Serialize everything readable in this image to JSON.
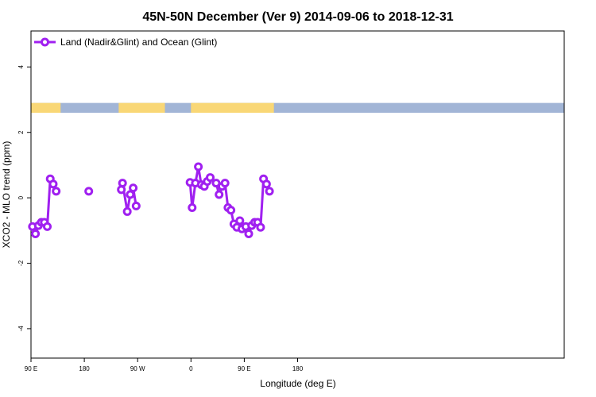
{
  "chart_data": {
    "type": "line",
    "title": "45N-50N December (Ver 9)   2014-09-06 to 2018-12-31",
    "xlabel": "Longitude (deg E)",
    "ylabel": "XCO2 - MLO trend (ppm)",
    "xlim": [
      90,
      450
    ],
    "ylim": [
      -4.9,
      5.1
    ],
    "x_ticks": [
      {
        "value": 90,
        "label": "90 E"
      },
      {
        "value": 180,
        "label": "180"
      },
      {
        "value": 270,
        "label": "90 W"
      },
      {
        "value": 360,
        "label": "0"
      },
      {
        "value": 450,
        "label": "90 E"
      },
      {
        "value": 540,
        "label": "180"
      }
    ],
    "y_ticks": [
      {
        "value": 4,
        "label": "4"
      },
      {
        "value": 2,
        "label": "2"
      },
      {
        "value": 0,
        "label": "0"
      },
      {
        "value": -2,
        "label": "-2"
      },
      {
        "value": -4,
        "label": "-4"
      }
    ],
    "legend": {
      "position": "top-left",
      "entries": [
        "Land (Nadir&Glint) and Ocean (Glint)"
      ]
    },
    "grid": false,
    "colors": {
      "series": "#a020f0",
      "land": "#f9d776",
      "ocean": "#a2b5d6"
    },
    "land_ocean_strip": {
      "y_range": [
        2.6,
        2.9
      ],
      "land_segments": [
        [
          90,
          140
        ],
        [
          238,
          316
        ],
        [
          360,
          500
        ]
      ]
    },
    "series": [
      {
        "name": "Land (Nadir&Glint) and Ocean (Glint)",
        "segments": [
          [
            [
              92.5,
              -0.88
            ],
            [
              97.5,
              -1.1
            ],
            [
              102.5,
              -0.85
            ],
            [
              107.5,
              -0.75
            ],
            [
              112.5,
              -0.75
            ],
            [
              117.5,
              -0.88
            ],
            [
              122.5,
              0.58
            ],
            [
              127.5,
              0.42
            ],
            [
              132.5,
              0.2
            ]
          ],
          [
            [
              187.5,
              0.2
            ]
          ],
          [
            [
              242.5,
              0.25
            ],
            [
              244.5,
              0.45
            ],
            [
              252.5,
              -0.42
            ],
            [
              257.5,
              0.1
            ],
            [
              262.5,
              0.3
            ],
            [
              267.5,
              -0.25
            ]
          ],
          [
            [
              358.5,
              0.47
            ],
            [
              362,
              -0.3
            ],
            [
              367.5,
              0.45
            ],
            [
              372.5,
              0.95
            ],
            [
              377.5,
              0.4
            ],
            [
              382.5,
              0.35
            ],
            [
              387.5,
              0.5
            ],
            [
              392.5,
              0.62
            ]
          ],
          [
            [
              402.5,
              0.45
            ],
            [
              407.5,
              0.1
            ],
            [
              412.5,
              0.35
            ],
            [
              417.5,
              0.45
            ],
            [
              422.5,
              -0.3
            ],
            [
              427.5,
              -0.38
            ],
            [
              432.5,
              -0.8
            ],
            [
              437.5,
              -0.9
            ],
            [
              442.5,
              -0.7
            ],
            [
              446,
              -0.95
            ],
            [
              452.5,
              -0.88
            ],
            [
              457.5,
              -1.1
            ],
            [
              462.5,
              -0.85
            ],
            [
              467.5,
              -0.75
            ],
            [
              472.5,
              -0.75
            ],
            [
              477.5,
              -0.9
            ],
            [
              482.5,
              0.58
            ],
            [
              487.5,
              0.42
            ],
            [
              492.5,
              0.2
            ]
          ]
        ]
      }
    ]
  }
}
